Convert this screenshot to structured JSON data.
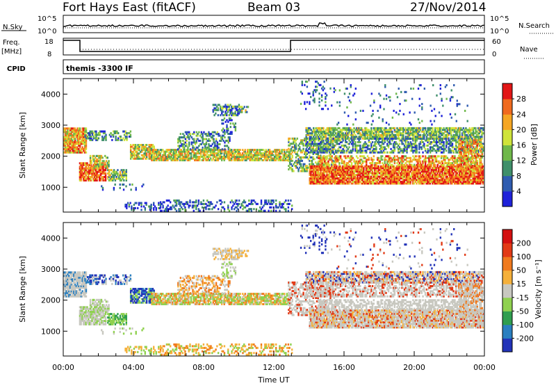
{
  "header": {
    "station": "Fort Hays East (fitACF)",
    "beam": "Beam 03",
    "date": "27/Nov/2014"
  },
  "top_panels": {
    "nsky_label": "N.Sky",
    "nsky_ticks": [
      "10^5",
      "10^0"
    ],
    "nsearch_label": "N.Search",
    "nsearch_ticks": [
      "10^5",
      "10^0"
    ],
    "freq_label": "Freq.",
    "freq_unit": "[MHz]",
    "freq_ticks": [
      "18",
      "8"
    ],
    "nave_label": "Nave",
    "nave_ticks": [
      "60",
      "0"
    ],
    "cpid_label": "CPID",
    "cpid_value": "themis -3300 IF"
  },
  "chart_data": [
    {
      "type": "heatmap",
      "name": "power",
      "ylabel": "Slant Range [km]",
      "y_ticks": [
        "1000",
        "2000",
        "3000",
        "4000"
      ],
      "ylim": [
        200,
        4500
      ],
      "xlim_hours": [
        0,
        24
      ],
      "colorbar_label": "Power [dB]",
      "colorbar_ticks": [
        "4",
        "8",
        "12",
        "16",
        "20",
        "24",
        "28"
      ],
      "colors": [
        "#1f22d9",
        "#2f5cb0",
        "#3f8f6a",
        "#6fb84a",
        "#cfe33a",
        "#f5a623",
        "#f06a1e",
        "#e21616"
      ]
    },
    {
      "type": "heatmap",
      "name": "velocity",
      "ylabel": "Slant Range [km]",
      "y_ticks": [
        "1000",
        "2000",
        "3000",
        "4000"
      ],
      "ylim": [
        200,
        4500
      ],
      "xlim_hours": [
        0,
        24
      ],
      "colorbar_label": "Velocity [m s⁻¹]",
      "colorbar_ticks": [
        "200",
        "100",
        "50",
        "15",
        "-15",
        "-50",
        "-100",
        "-200"
      ],
      "colors": [
        "#2233b8",
        "#2a7fc0",
        "#2f9e4f",
        "#8fd14f",
        "#c8c8c0",
        "#f5b03a",
        "#f07a1e",
        "#e23a16",
        "#d41010"
      ]
    }
  ],
  "x_axis": {
    "ticks": [
      "00:00",
      "04:00",
      "08:00",
      "12:00",
      "16:00",
      "20:00",
      "00:00"
    ],
    "label": "Time UT"
  }
}
